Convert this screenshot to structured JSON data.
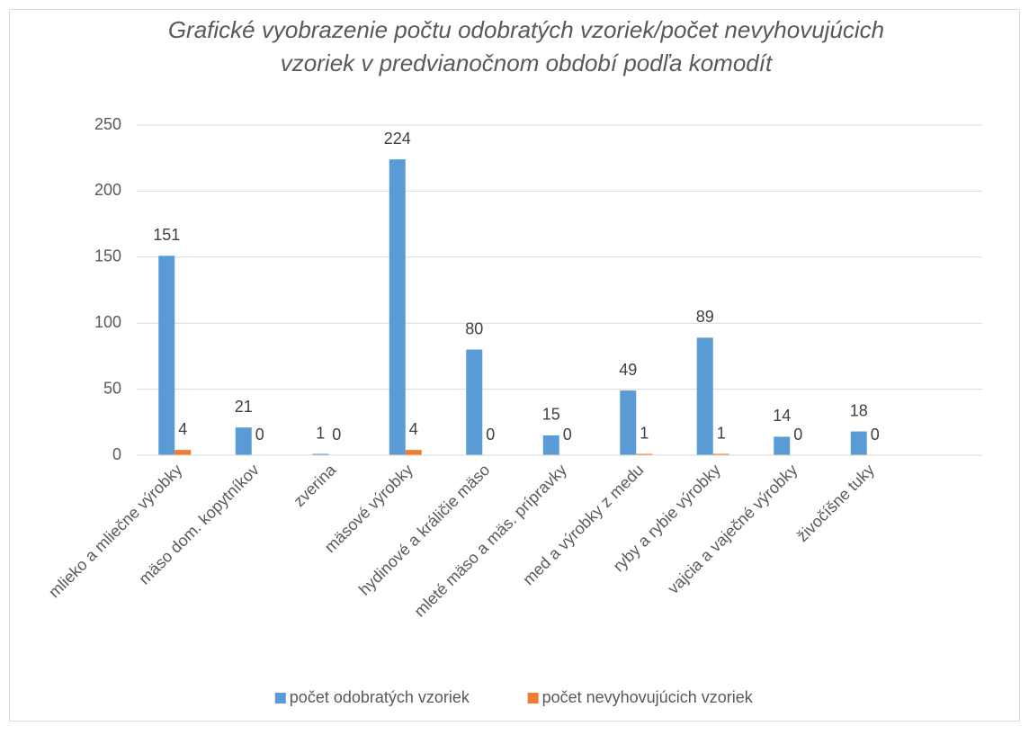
{
  "chart_data": {
    "type": "bar",
    "title": [
      "Grafické vyobrazenie počtu odobratých vzoriek/počet nevyhovujúcich",
      "vzoriek v predvianočnom období podľa komodít"
    ],
    "categories": [
      "mlieko a mliečne výrobky",
      "mäso dom. kopytníkov",
      "zverina",
      "mäsové výrobky",
      "hydinové a králičie mäso",
      "mleté mäso a mäs. prípravky",
      "med a výrobky z medu",
      "ryby a rybie výrobky",
      "vajcia a vaječné výrobky",
      "živočíšne tuky",
      null
    ],
    "series": [
      {
        "name": "počet odobratých vzoriek",
        "color": "#5b9bd5",
        "values": [
          151,
          21,
          1,
          224,
          80,
          15,
          49,
          89,
          14,
          18,
          null
        ]
      },
      {
        "name": "počet nevyhovujúcich vzoriek",
        "color": "#ed7d31",
        "values": [
          4,
          0,
          0,
          4,
          0,
          0,
          1,
          1,
          0,
          0,
          null
        ]
      }
    ],
    "ylim": [
      0,
      250
    ],
    "yticks": [
      0,
      50,
      100,
      150,
      200,
      250
    ],
    "grid": true,
    "legend": "bottom"
  }
}
